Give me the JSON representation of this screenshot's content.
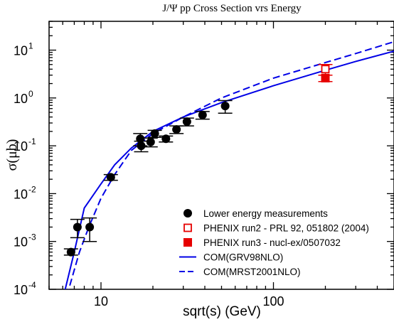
{
  "chart_data": {
    "type": "scatter",
    "title": "J/Ψ pp Cross Section vrs Energy",
    "xlabel": "sqrt(s) (GeV)",
    "ylabel": "σ(μb)",
    "x_scale": "log",
    "y_scale": "log",
    "xlim": [
      5,
      500
    ],
    "ylim": [
      0.0001,
      40
    ],
    "x_ticks": [
      {
        "value": 10,
        "label": "10"
      },
      {
        "value": 100,
        "label": "100"
      }
    ],
    "y_ticks": [
      {
        "value": 0.0001,
        "base": "10",
        "exp": "-4"
      },
      {
        "value": 0.001,
        "base": "10",
        "exp": "-3"
      },
      {
        "value": 0.01,
        "base": "10",
        "exp": "-2"
      },
      {
        "value": 0.1,
        "base": "10",
        "exp": "-1"
      },
      {
        "value": 1,
        "base": "10",
        "exp": "0"
      },
      {
        "value": 10,
        "base": "10",
        "exp": "1"
      }
    ],
    "grid": false,
    "legend_position": "bottom-right",
    "series": [
      {
        "name": "Lower energy measurements",
        "kind": "points",
        "marker": "filled-circle",
        "color": "#000000",
        "points": [
          {
            "x": 6.7,
            "y": 0.0006,
            "err_lo": 8e-05,
            "err_hi": 0.0001
          },
          {
            "x": 7.3,
            "y": 0.002,
            "err_lo": 0.0008,
            "err_hi": 0.0009
          },
          {
            "x": 8.6,
            "y": 0.002,
            "err_lo": 0.001,
            "err_hi": 0.0011
          },
          {
            "x": 11.4,
            "y": 0.022,
            "err_lo": 0.003,
            "err_hi": 0.003
          },
          {
            "x": 16.9,
            "y": 0.14,
            "err_lo": 0.04,
            "err_hi": 0.04
          },
          {
            "x": 17.1,
            "y": 0.1,
            "err_lo": 0.025,
            "err_hi": 0.025
          },
          {
            "x": 19.4,
            "y": 0.12,
            "err_lo": 0.025,
            "err_hi": 0.025
          },
          {
            "x": 20.5,
            "y": 0.18,
            "err_lo": 0.03,
            "err_hi": 0.03
          },
          {
            "x": 23.8,
            "y": 0.14,
            "err_lo": 0.02,
            "err_hi": 0.02
          },
          {
            "x": 27.4,
            "y": 0.22,
            "err_lo": 0.04,
            "err_hi": 0.04
          },
          {
            "x": 31.5,
            "y": 0.32,
            "err_lo": 0.06,
            "err_hi": 0.06
          },
          {
            "x": 38.8,
            "y": 0.44,
            "err_lo": 0.08,
            "err_hi": 0.08
          },
          {
            "x": 52.5,
            "y": 0.68,
            "err_lo": 0.2,
            "err_hi": 0.2
          }
        ]
      },
      {
        "name": "PHENIX run2 - PRL 92, 051802 (2004)",
        "kind": "points",
        "marker": "open-square",
        "color": "#e60000",
        "points": [
          {
            "x": 200,
            "y": 4.0,
            "err_lo": 1.0,
            "err_hi": 1.0
          }
        ]
      },
      {
        "name": "PHENIX run3 - nucl-ex/0507032",
        "kind": "points",
        "marker": "filled-square",
        "color": "#e60000",
        "points": [
          {
            "x": 200,
            "y": 2.6,
            "err_lo": 0.4,
            "err_hi": 0.4
          }
        ]
      },
      {
        "name": "COM(GRV98NLO)",
        "kind": "line",
        "dash": "solid",
        "color": "#0000e6",
        "x": [
          5,
          6.2,
          7,
          8,
          10,
          12,
          15,
          20,
          30,
          50,
          100,
          200,
          300,
          500
        ],
        "y": [
          3e-05,
          0.0001,
          0.0006,
          0.005,
          0.016,
          0.04,
          0.09,
          0.2,
          0.4,
          0.8,
          1.8,
          3.8,
          5.8,
          9.5
        ]
      },
      {
        "name": "COM(MRST2001NLO)",
        "kind": "line",
        "dash": "dashed",
        "color": "#0000e6",
        "x": [
          5,
          6.5,
          7.5,
          8.5,
          10,
          12,
          15,
          20,
          30,
          50,
          100,
          200,
          300,
          500
        ],
        "y": [
          2e-05,
          0.0001,
          0.0006,
          0.002,
          0.008,
          0.025,
          0.08,
          0.18,
          0.4,
          1.0,
          2.6,
          5.5,
          8.5,
          15
        ]
      }
    ]
  }
}
